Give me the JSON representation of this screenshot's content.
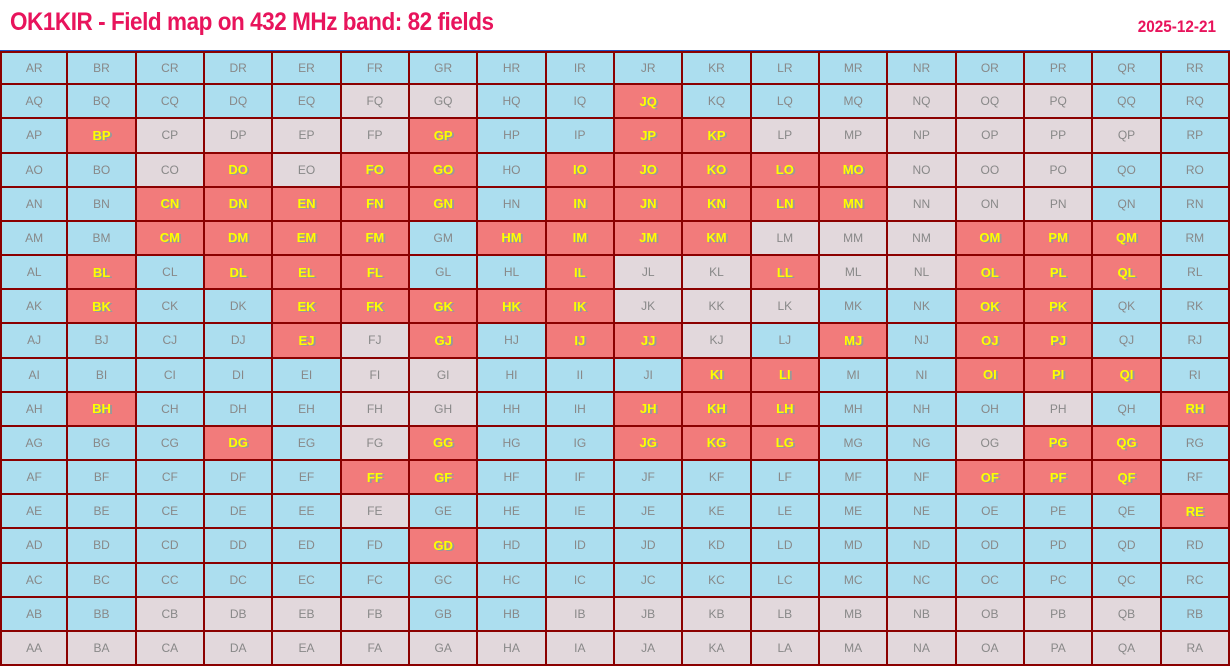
{
  "header": {
    "title": "OK1KIR - Field map on 432 MHz band:  82 fields",
    "date": "2025-12-21"
  },
  "colors": {
    "ocean": "#acdeef",
    "land": "#e2d8dc",
    "worked": "#f27b7b",
    "grid_line": "#8b0000",
    "worked_label": "#ffff00",
    "title": "#e8145c"
  },
  "legend_codes": {
    "o": "ocean",
    "l": "land",
    "w": "worked"
  },
  "grid": {
    "columns": [
      "A",
      "B",
      "C",
      "D",
      "E",
      "F",
      "G",
      "H",
      "I",
      "J",
      "K",
      "L",
      "M",
      "N",
      "O",
      "P",
      "Q",
      "R"
    ],
    "rows": [
      {
        "row": "R",
        "status": "oooooooooooooooooo"
      },
      {
        "row": "Q",
        "status": "ooooolloowooollloo"
      },
      {
        "row": "P",
        "status": "owllllwoowwllllllo"
      },
      {
        "row": "O",
        "status": "oolwlwwowwwwwllloo"
      },
      {
        "row": "N",
        "status": "oowwwwwowwwwwllloo"
      },
      {
        "row": "M",
        "status": "oowwwwowwwwlllwwwo"
      },
      {
        "row": "L",
        "status": "owowwwoowllwllwwwo"
      },
      {
        "row": "K",
        "status": "owoowwwwwllloowwoo"
      },
      {
        "row": "J",
        "status": "oooowlwowwlowowwoo"
      },
      {
        "row": "I",
        "status": "ooooollooowwoowwwo"
      },
      {
        "row": "H",
        "status": "owooolloowwwooolow"
      },
      {
        "row": "G",
        "status": "ooowolwoowwwoolwwo"
      },
      {
        "row": "F",
        "status": "ooooowwooooooowwwo"
      },
      {
        "row": "E",
        "status": "ooooolooooooooooow"
      },
      {
        "row": "D",
        "status": "oooooowooooooooooo"
      },
      {
        "row": "C",
        "status": "oooooooooooooooooo"
      },
      {
        "row": "B",
        "status": "oolllloolllllllllo"
      },
      {
        "row": "A",
        "status": "llllllllllllllllll"
      }
    ]
  }
}
